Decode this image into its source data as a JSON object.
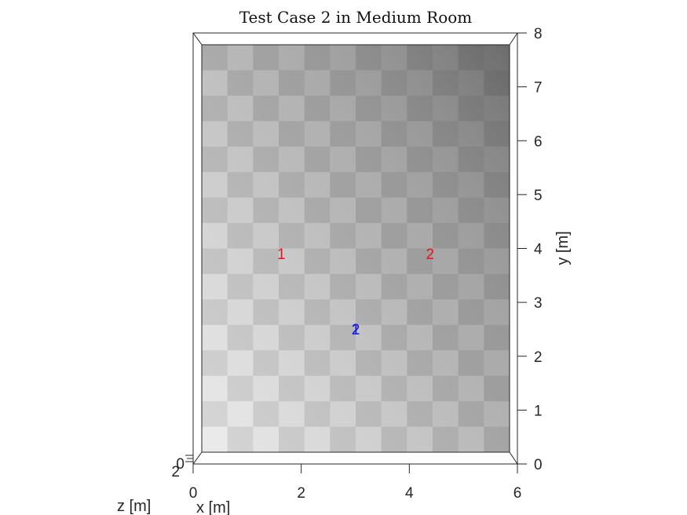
{
  "chart_data": {
    "type": "scatter",
    "title": "Test Case 2 in Medium Room",
    "xlabel": "x [m]",
    "ylabel": "y [m]",
    "zlabel": "z [m]",
    "xlim": [
      0,
      6
    ],
    "ylim": [
      0,
      8
    ],
    "x_ticks": [
      "0",
      "2",
      "4",
      "6"
    ],
    "y_ticks": [
      "0",
      "1",
      "2",
      "3",
      "4",
      "5",
      "6",
      "7",
      "8"
    ],
    "z_ticks": [
      "0",
      "2"
    ],
    "floor": "checkerboard",
    "series": [
      {
        "name": "",
        "color": "#e8141e",
        "points": [
          {
            "label": "1",
            "x": 1.55,
            "y": 3.9
          },
          {
            "label": "2",
            "x": 4.45,
            "y": 3.9
          }
        ]
      },
      {
        "name": "",
        "color": "#1414e8",
        "points": [
          {
            "label": "1",
            "x": 3.0,
            "y": 2.42
          },
          {
            "label": "2",
            "x": 3.0,
            "y": 2.42
          }
        ]
      }
    ]
  }
}
